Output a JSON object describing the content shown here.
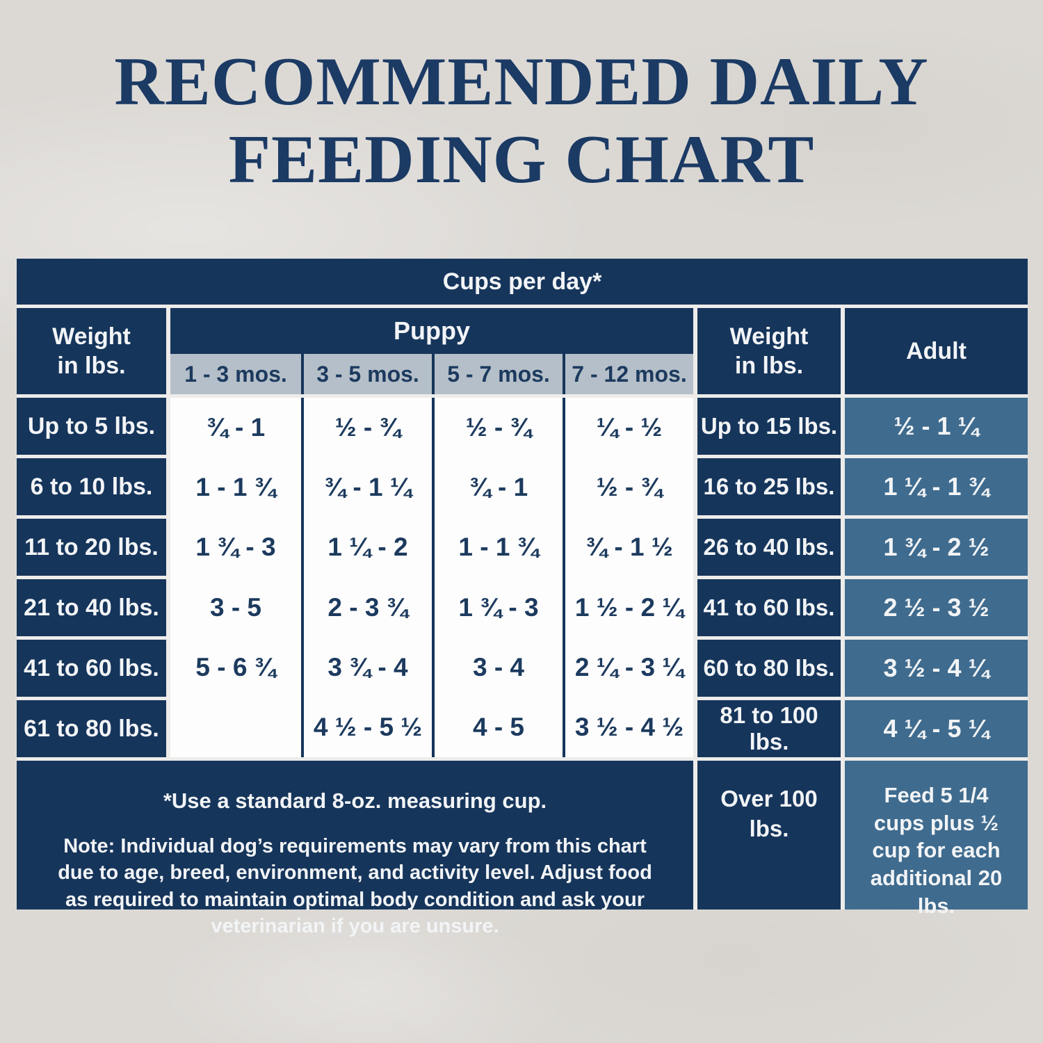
{
  "page": {
    "title_line1": "RECOMMENDED DAILY",
    "title_line2": "FEEDING CHART"
  },
  "colors": {
    "navy": "#16355b",
    "steel_blue": "#3f6b8e",
    "gray_band": "#b5bfc9",
    "white_cell": "#fdfdfd",
    "background": "#dcd9d5",
    "title_text": "#1b3a64"
  },
  "chart_data": {
    "type": "table",
    "title": "RECOMMENDED DAILY FEEDING CHART",
    "units_header": "Cups per day*",
    "puppy_table": {
      "group_header": "Puppy",
      "weight_header_lines": [
        "Weight",
        "in lbs."
      ],
      "age_columns": [
        "1 - 3 mos.",
        "3 - 5 mos.",
        "5 - 7 mos.",
        "7 - 12 mos."
      ],
      "rows": [
        {
          "weight": "Up to 5 lbs.",
          "values": [
            "¾ - 1",
            "½ - ¾",
            "½ - ¾",
            "¼ - ½"
          ]
        },
        {
          "weight": "6 to 10 lbs.",
          "values": [
            "1 - 1 ¾",
            "¾ - 1 ¼",
            "¾ - 1",
            "½ - ¾"
          ]
        },
        {
          "weight": "11 to 20 lbs.",
          "values": [
            "1 ¾ - 3",
            "1 ¼ - 2",
            "1 - 1 ¾",
            "¾ - 1 ½"
          ]
        },
        {
          "weight": "21 to 40 lbs.",
          "values": [
            "3 - 5",
            "2 - 3 ¾",
            "1 ¾ - 3",
            "1 ½ - 2 ¼"
          ]
        },
        {
          "weight": "41 to 60 lbs.",
          "values": [
            "5 - 6 ¾",
            "3 ¾ - 4",
            "3 - 4",
            "2 ¼ - 3 ¼"
          ]
        },
        {
          "weight": "61 to 80 lbs.",
          "values": [
            "",
            "4 ½ - 5 ½",
            "4 - 5",
            "3 ½ - 4 ½"
          ]
        }
      ]
    },
    "adult_table": {
      "weight_header_lines": [
        "Weight",
        "in lbs."
      ],
      "column_header": "Adult",
      "rows": [
        {
          "weight": "Up to 15 lbs.",
          "value": "½ - 1 ¼"
        },
        {
          "weight": "16 to 25 lbs.",
          "value": "1 ¼ - 1 ¾"
        },
        {
          "weight": "26 to 40 lbs.",
          "value": "1 ¾ - 2 ½"
        },
        {
          "weight": "41 to 60 lbs.",
          "value": "2 ½ - 3 ½"
        },
        {
          "weight": "60 to 80 lbs.",
          "value": "3 ½ - 4 ¼"
        },
        {
          "weight": "81 to 100 lbs.",
          "value": "4 ¼ - 5 ¼"
        }
      ],
      "over_row": {
        "weight_lines": [
          "Over 100",
          "lbs."
        ],
        "value": "Feed 5 1/4 cups plus ½ cup for each additional 20 lbs."
      }
    },
    "footnote_bold": "*Use a standard 8-oz. measuring cup.",
    "footnote": "Note: Individual dog’s requirements may vary from this chart due to age, breed, environment, and activity level. Adjust food as required to maintain optimal body condition and ask your veterinarian if you are unsure."
  }
}
